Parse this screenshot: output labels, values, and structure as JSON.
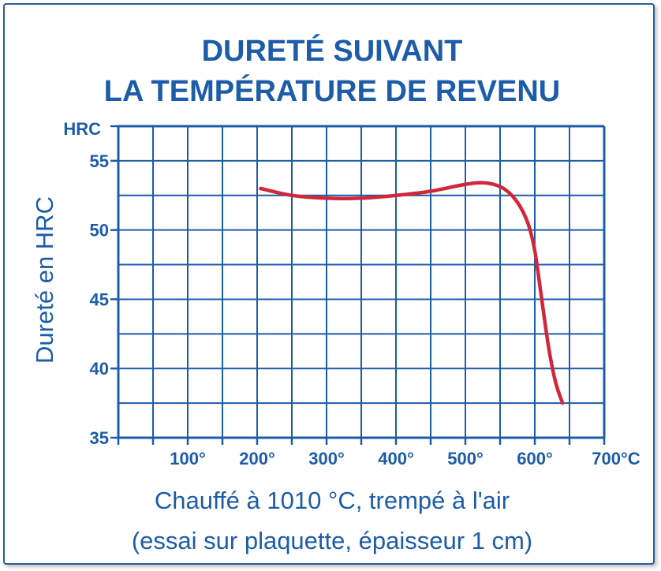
{
  "chart_data": {
    "type": "line",
    "title_lines": [
      "DURETÉ SUIVANT",
      "LA TEMPÉRATURE DE REVENU"
    ],
    "ylabel": "Dureté en HRC",
    "y_unit_label": "HRC",
    "xlabel_lines": [
      "Chauffé à 1010 °C, trempé à l'air",
      "(essai sur plaquette, épaisseur 1 cm)"
    ],
    "x_tick_labels": [
      "100°",
      "200°",
      "300°",
      "400°",
      "500°",
      "600°",
      "700°C"
    ],
    "x_tick_values": [
      100,
      200,
      300,
      400,
      500,
      600,
      700
    ],
    "y_tick_values": [
      35,
      40,
      45,
      50,
      55
    ],
    "xlim": [
      0,
      700
    ],
    "ylim": [
      35,
      57.5
    ],
    "grid": true,
    "colors": {
      "line": "#d0283a",
      "grid": "#1d5ca8",
      "text": "#1d5ca8"
    },
    "series": [
      {
        "x": [
          205,
          250,
          300,
          350,
          400,
          450,
          500,
          530,
          555,
          575,
          590,
          600,
          610,
          620,
          630,
          640
        ],
        "y": [
          53.0,
          52.5,
          52.3,
          52.3,
          52.5,
          52.8,
          53.3,
          53.4,
          53.0,
          52.0,
          50.5,
          48.5,
          45.0,
          41.5,
          39.0,
          37.5
        ]
      }
    ]
  }
}
